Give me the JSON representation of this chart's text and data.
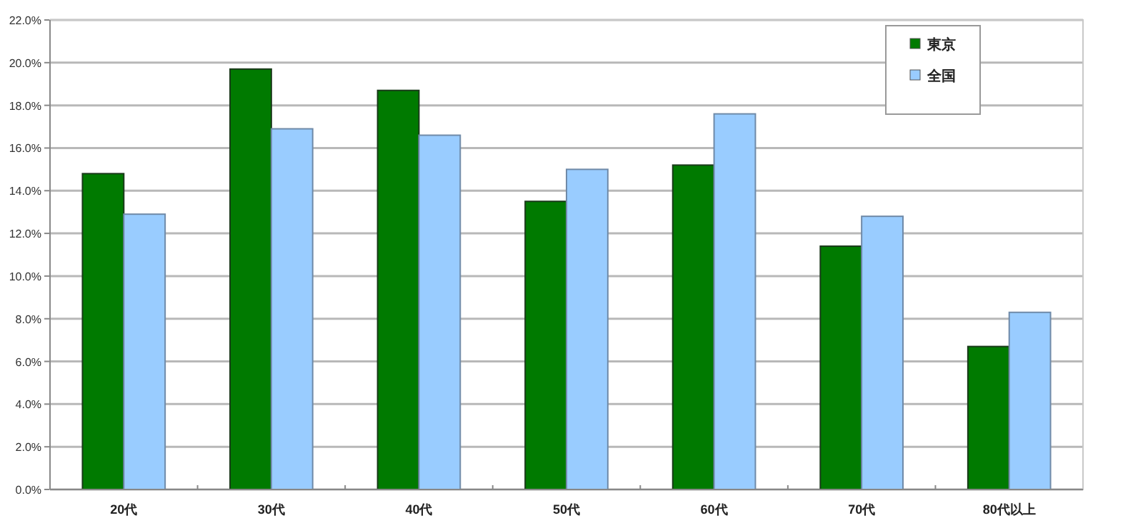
{
  "chart_data": {
    "type": "bar",
    "categories": [
      "20代",
      "30代",
      "40代",
      "50代",
      "60代",
      "70代",
      "80代以上"
    ],
    "series": [
      {
        "name": "東京",
        "color": "#007a00",
        "values": [
          14.8,
          19.7,
          18.7,
          13.5,
          15.2,
          11.4,
          6.7
        ]
      },
      {
        "name": "全国",
        "color": "#99ccff",
        "values": [
          12.9,
          16.9,
          16.6,
          15.0,
          17.6,
          12.8,
          8.3
        ]
      }
    ],
    "ylim": [
      0,
      22
    ],
    "yticks": [
      {
        "value": 0,
        "label": "0.0%"
      },
      {
        "value": 2,
        "label": "2.0%"
      },
      {
        "value": 4,
        "label": "4.0%"
      },
      {
        "value": 6,
        "label": "6.0%"
      },
      {
        "value": 8,
        "label": "8.0%"
      },
      {
        "value": 10,
        "label": "10.0%"
      },
      {
        "value": 12,
        "label": "12.0%"
      },
      {
        "value": 14,
        "label": "14.0%"
      },
      {
        "value": 16,
        "label": "16.0%"
      },
      {
        "value": 18,
        "label": "18.0%"
      },
      {
        "value": 20,
        "label": "20.0%"
      },
      {
        "value": 22,
        "label": "22.0%"
      }
    ],
    "grid": "y",
    "legend": "top right"
  }
}
